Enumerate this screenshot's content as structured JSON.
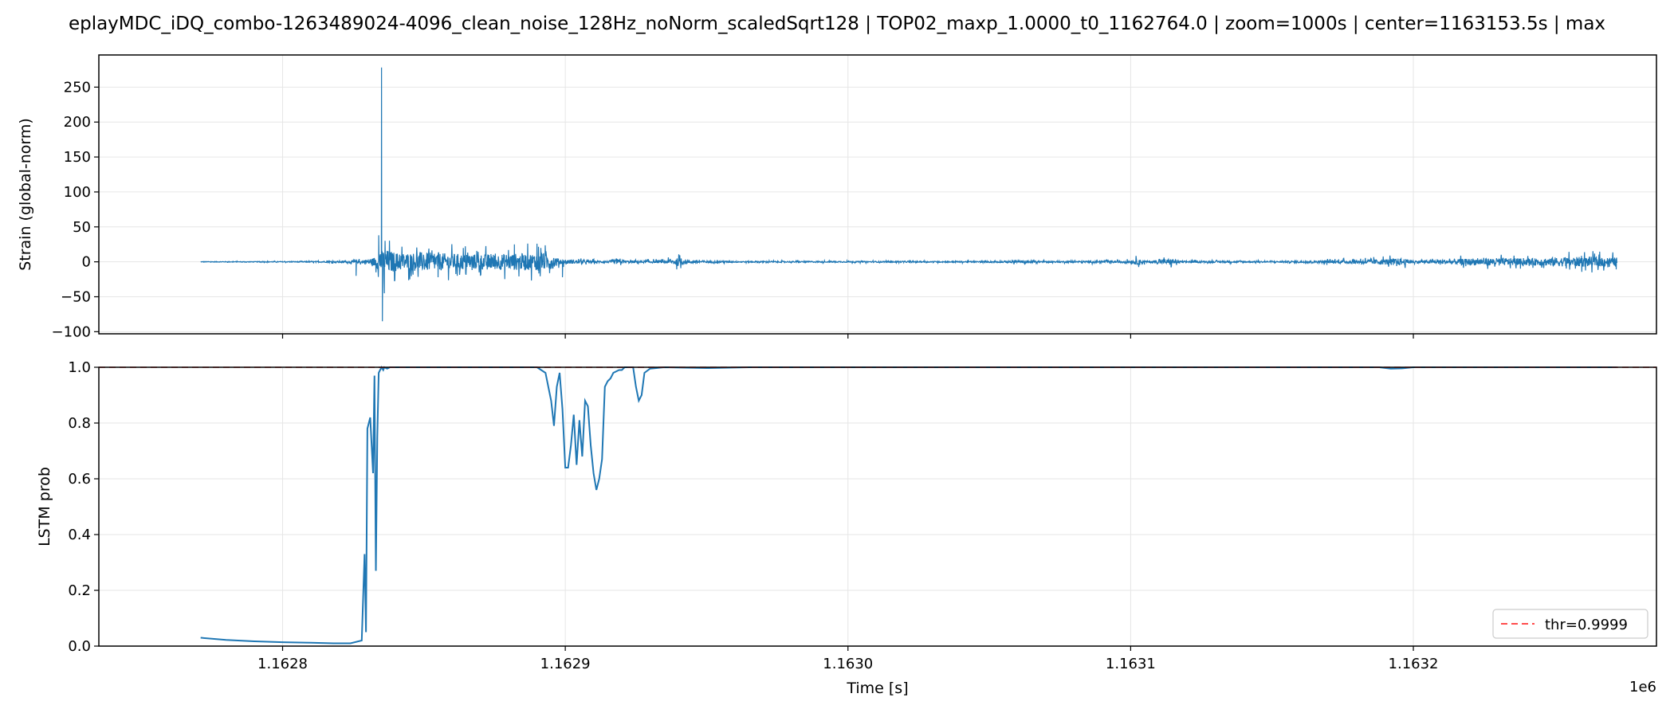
{
  "title": "eplayMDC_iDQ_combo-1263489024-4096_clean_noise_128Hz_noNorm_scaledSqrt128 | TOP02_maxp_1.0000_t0_1162764.0 | zoom=1000s | center=1163153.5s | max",
  "colors": {
    "series": "#1f77b4",
    "threshold": "#ff4d4d",
    "grid": "#e6e6e6"
  },
  "chart_data": [
    {
      "type": "line",
      "panel": "strain",
      "xlabel": "",
      "ylabel": "Strain (global-norm)",
      "xlim": [
        1162735,
        1163286
      ],
      "ylim": [
        -103,
        296
      ],
      "yticks": [
        -100,
        -50,
        0,
        50,
        100,
        150,
        200,
        250
      ],
      "xticks": [
        1162800,
        1162900,
        1163000,
        1163100,
        1163200
      ],
      "grid": true,
      "series": [
        {
          "x_range": [
            1162771,
            1163272
          ],
          "envelope": [
            [
              1162771,
              1
            ],
            [
              1162790,
              1
            ],
            [
              1162810,
              1.5
            ],
            [
              1162822,
              3
            ],
            [
              1162828,
              5
            ],
            [
              1162832,
              12
            ],
            [
              1162836,
              40
            ],
            [
              1162838,
              35
            ],
            [
              1162841,
              28
            ],
            [
              1162850,
              30
            ],
            [
              1162860,
              26
            ],
            [
              1162870,
              24
            ],
            [
              1162880,
              26
            ],
            [
              1162890,
              27
            ],
            [
              1162895,
              25
            ],
            [
              1162898,
              8
            ],
            [
              1162905,
              5
            ],
            [
              1162915,
              3
            ],
            [
              1162918,
              8
            ],
            [
              1162922,
              4
            ],
            [
              1162935,
              4
            ],
            [
              1162940,
              12
            ],
            [
              1162944,
              5
            ],
            [
              1162960,
              2
            ],
            [
              1162980,
              2
            ],
            [
              1163000,
              2
            ],
            [
              1163020,
              2
            ],
            [
              1163050,
              2
            ],
            [
              1163065,
              5
            ],
            [
              1163070,
              2
            ],
            [
              1163100,
              4
            ],
            [
              1163102,
              9
            ],
            [
              1163106,
              3
            ],
            [
              1163115,
              10
            ],
            [
              1163117,
              3
            ],
            [
              1163150,
              2
            ],
            [
              1163180,
              6
            ],
            [
              1163190,
              9
            ],
            [
              1163196,
              11
            ],
            [
              1163200,
              4
            ],
            [
              1163220,
              10
            ],
            [
              1163230,
              12
            ],
            [
              1163240,
              10
            ],
            [
              1163250,
              14
            ],
            [
              1163262,
              16
            ],
            [
              1163272,
              14
            ]
          ],
          "spikes": [
            [
              1162835,
              278
            ],
            [
              1162835.3,
              -85
            ],
            [
              1162834,
              38
            ],
            [
              1162836,
              -45
            ],
            [
              1162826,
              -20
            ],
            [
              1162845,
              -25
            ],
            [
              1162855,
              -22
            ],
            [
              1162870,
              -20
            ],
            [
              1162882,
              25
            ],
            [
              1162890,
              26
            ],
            [
              1162899,
              -22
            ]
          ]
        }
      ]
    },
    {
      "type": "line",
      "panel": "lstm",
      "xlabel": "Time [s]",
      "ylabel": "LSTM prob",
      "xlim": [
        1162735,
        1163286
      ],
      "ylim": [
        0.0,
        1.0
      ],
      "yticks": [
        0.0,
        0.2,
        0.4,
        0.6,
        0.8,
        1.0
      ],
      "xticks": [
        1162800,
        1162900,
        1163000,
        1163100,
        1163200
      ],
      "xtick_labels": [
        "1.1628",
        "1.1629",
        "1.1630",
        "1.1631",
        "1.1632"
      ],
      "offset_text": "1e6",
      "grid": true,
      "legend": {
        "position": "bottom-right",
        "entries": [
          {
            "label": "thr=0.9999",
            "style": "dashed"
          }
        ]
      },
      "threshold": 0.9999,
      "series": [
        {
          "x": [
            1162771,
            1162780,
            1162790,
            1162800,
            1162810,
            1162818,
            1162824,
            1162828,
            1162829,
            1162829.5,
            1162830,
            1162831,
            1162832,
            1162832.5,
            1162833,
            1162833.5,
            1162834,
            1162834.5,
            1162835,
            1162835.6,
            1162836,
            1162837,
            1162838,
            1162839,
            1162845,
            1162870,
            1162890,
            1162893,
            1162895,
            1162896,
            1162897,
            1162898,
            1162899,
            1162900,
            1162901,
            1162902,
            1162903,
            1162904,
            1162905,
            1162906,
            1162907,
            1162908,
            1162909,
            1162910,
            1162911,
            1162912,
            1162913,
            1162914,
            1162915,
            1162916,
            1162917,
            1162919,
            1162920,
            1162921,
            1162922,
            1162923,
            1162924,
            1162925,
            1162926,
            1162927,
            1162928,
            1162930,
            1162935,
            1162950,
            1162965,
            1163000,
            1163100,
            1163188,
            1163192,
            1163196,
            1163200,
            1163272
          ],
          "y": [
            0.03,
            0.022,
            0.017,
            0.014,
            0.012,
            0.01,
            0.01,
            0.02,
            0.33,
            0.05,
            0.78,
            0.82,
            0.62,
            0.97,
            0.27,
            0.75,
            0.98,
            0.99,
            1.0,
            0.99,
            1.0,
            0.995,
            1.0,
            1.0,
            1.0,
            1.0,
            1.0,
            0.98,
            0.88,
            0.79,
            0.93,
            0.98,
            0.85,
            0.64,
            0.64,
            0.72,
            0.83,
            0.65,
            0.81,
            0.68,
            0.88,
            0.86,
            0.72,
            0.62,
            0.56,
            0.6,
            0.67,
            0.93,
            0.95,
            0.96,
            0.98,
            0.99,
            0.99,
            1.0,
            1.0,
            1.0,
            1.0,
            0.93,
            0.88,
            0.9,
            0.98,
            0.995,
            1.0,
            0.997,
            1.0,
            1.0,
            1.0,
            1.0,
            0.995,
            0.996,
            1.0,
            1.0
          ]
        }
      ]
    }
  ]
}
